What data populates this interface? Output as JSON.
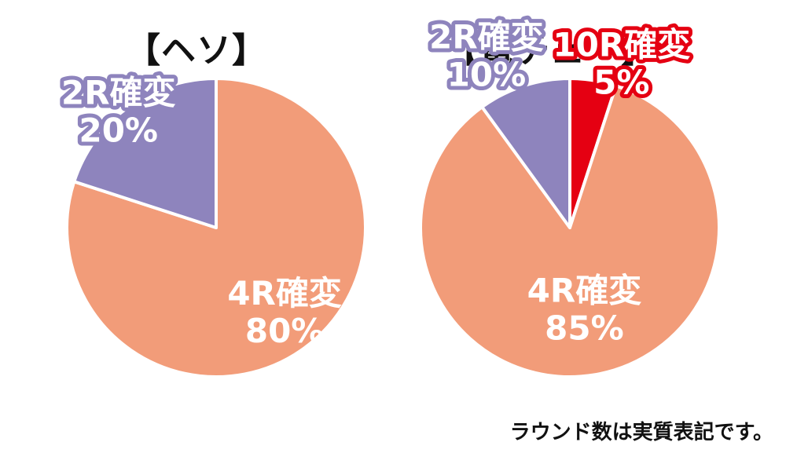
{
  "colors": {
    "purple": "#8e84bd",
    "salmon": "#f29c79",
    "red": "#e50012"
  },
  "chart_data": [
    {
      "type": "pie",
      "title": "【ヘソ】",
      "slices": [
        {
          "label": "4R確変",
          "value": 80,
          "display": "80%",
          "color": "#f29c79",
          "label_color": "#ffffff"
        },
        {
          "label": "2R確変",
          "value": 20,
          "display": "20%",
          "color": "#8e84bd",
          "label_color": "#8e84bd"
        }
      ]
    },
    {
      "type": "pie",
      "title": "【電チュー】",
      "slices": [
        {
          "label": "10R確変",
          "value": 5,
          "display": "5%",
          "color": "#e50012",
          "label_color": "#e50012"
        },
        {
          "label": "4R確変",
          "value": 85,
          "display": "85%",
          "color": "#f29c79",
          "label_color": "#ffffff"
        },
        {
          "label": "2R確変",
          "value": 10,
          "display": "10%",
          "color": "#8e84bd",
          "label_color": "#8e84bd"
        }
      ]
    }
  ],
  "footnote": "ラウンド数は実質表記です。"
}
